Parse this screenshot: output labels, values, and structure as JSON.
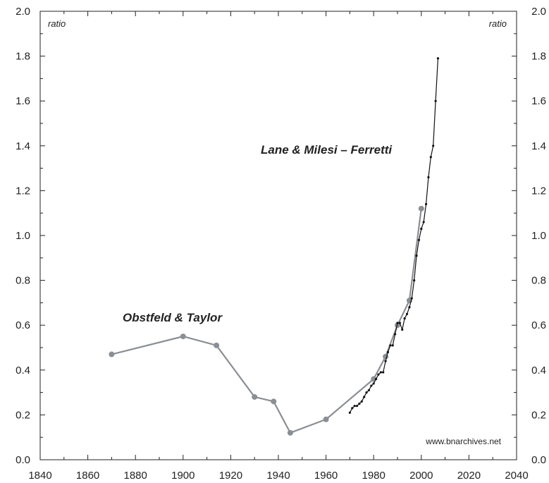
{
  "chart_data": {
    "type": "line",
    "unit_label_left": "ratio",
    "unit_label_right": "ratio",
    "source": "www.bnarchives.net",
    "xlim": [
      1840,
      2040
    ],
    "ylim": [
      0.0,
      2.0
    ],
    "x_ticks": [
      1840,
      1860,
      1880,
      1900,
      1920,
      1940,
      1960,
      1980,
      2000,
      2020,
      2040
    ],
    "y_ticks": [
      "0.0",
      "0.2",
      "0.4",
      "0.6",
      "0.8",
      "1.0",
      "1.2",
      "1.4",
      "1.6",
      "1.8",
      "2.0"
    ],
    "grid": false,
    "colors": {
      "series_1": "#8a8f94",
      "series_2": "#111111",
      "axis": "#222222"
    },
    "series": [
      {
        "name": "Obstfeld & Taylor",
        "x": [
          1870,
          1900,
          1914,
          1930,
          1938,
          1945,
          1960,
          1980,
          1985,
          1990,
          1995,
          2000
        ],
        "y": [
          0.47,
          0.55,
          0.51,
          0.28,
          0.26,
          0.12,
          0.18,
          0.36,
          0.46,
          0.6,
          0.71,
          1.12
        ]
      },
      {
        "name": "Lane & Milesi – Ferretti",
        "x": [
          1970,
          1971,
          1972,
          1973,
          1974,
          1975,
          1976,
          1977,
          1978,
          1979,
          1980,
          1981,
          1982,
          1983,
          1984,
          1985,
          1986,
          1987,
          1988,
          1989,
          1990,
          1991,
          1992,
          1993,
          1994,
          1995,
          1996,
          1997,
          1998,
          1999,
          2000,
          2001,
          2002,
          2003,
          2004,
          2005,
          2006,
          2007
        ],
        "y": [
          0.21,
          0.23,
          0.24,
          0.24,
          0.25,
          0.26,
          0.28,
          0.3,
          0.31,
          0.33,
          0.34,
          0.36,
          0.38,
          0.39,
          0.39,
          0.44,
          0.48,
          0.51,
          0.51,
          0.56,
          0.61,
          0.61,
          0.58,
          0.63,
          0.65,
          0.68,
          0.72,
          0.8,
          0.91,
          0.98,
          1.03,
          1.06,
          1.14,
          1.26,
          1.35,
          1.4,
          1.6,
          1.79
        ]
      }
    ]
  }
}
